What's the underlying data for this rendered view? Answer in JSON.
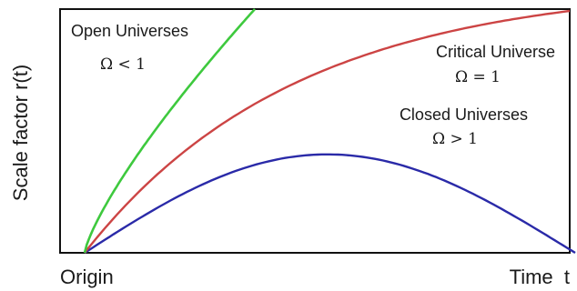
{
  "axes": {
    "y_label": "Scale factor r(t)",
    "x_origin_label": "Origin",
    "x_end_label": "Time  t"
  },
  "curves": [
    {
      "id": "open",
      "title": "Open Universes",
      "condition": "Ω < 1",
      "color": "#3ec93e"
    },
    {
      "id": "critical",
      "title": "Critical Universe",
      "condition": "Ω = 1",
      "color": "#cc4444"
    },
    {
      "id": "closed",
      "title": "Closed Universes",
      "condition": "Ω > 1",
      "color": "#2a2aa8"
    }
  ],
  "frame_color": "#111111"
}
